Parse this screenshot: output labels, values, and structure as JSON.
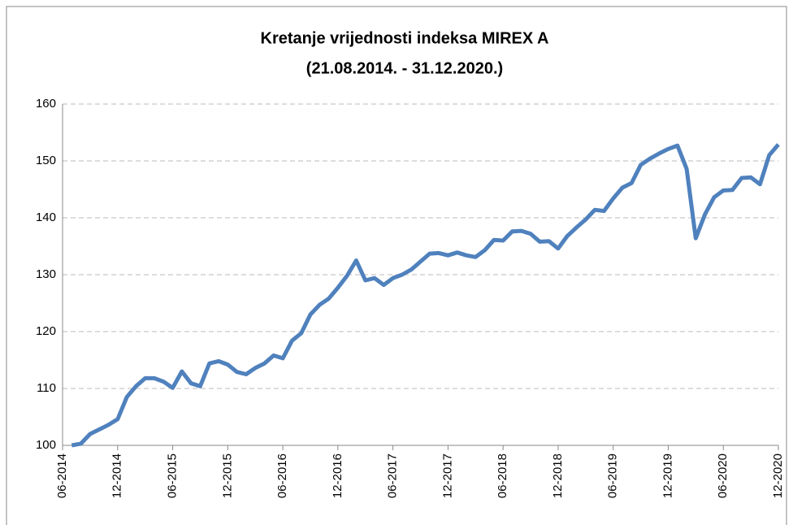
{
  "chart_data": {
    "type": "line",
    "title": "Kretanje vrijednosti indeksa MIREX A",
    "subtitle": "(21.08.2014. - 31.12.2020.)",
    "categories": [
      "06-2014",
      null,
      null,
      null,
      null,
      null,
      "12-2014",
      null,
      null,
      null,
      null,
      null,
      "06-2015",
      null,
      null,
      null,
      null,
      null,
      "12-2015",
      null,
      null,
      null,
      null,
      null,
      "06-2016",
      null,
      null,
      null,
      null,
      null,
      "12-2016",
      null,
      null,
      null,
      null,
      null,
      "06-2017",
      null,
      null,
      null,
      null,
      null,
      "12-2017",
      null,
      null,
      null,
      null,
      null,
      "06-2018",
      null,
      null,
      null,
      null,
      null,
      "12-2018",
      null,
      null,
      null,
      null,
      null,
      "06-2019",
      null,
      null,
      null,
      null,
      null,
      "12-2019",
      null,
      null,
      null,
      null,
      null,
      "06-2020",
      null,
      null,
      null,
      null,
      null,
      "12-2020"
    ],
    "series": [
      {
        "name": "MIREX A",
        "color": "#4f81bd",
        "values": [
          null,
          100,
          100.3,
          102,
          102.8,
          103.6,
          104.6,
          108.5,
          110.4,
          111.8,
          111.8,
          111.2,
          110.1,
          113,
          110.9,
          110.4,
          114.4,
          114.8,
          114.2,
          112.9,
          112.5,
          113.6,
          114.4,
          115.8,
          115.3,
          118.4,
          119.7,
          123,
          124.7,
          125.8,
          127.7,
          129.8,
          132.5,
          129,
          129.4,
          128.2,
          129.4,
          130,
          130.9,
          132.3,
          133.7,
          133.8,
          133.4,
          133.9,
          133.4,
          133.1,
          134.3,
          136.1,
          136,
          137.6,
          137.7,
          137.2,
          135.8,
          135.9,
          134.6,
          136.8,
          138.3,
          139.7,
          141.4,
          141.2,
          143.4,
          145.3,
          146.1,
          149.3,
          150.4,
          151.3,
          152.1,
          152.7,
          148.6,
          136.4,
          140.6,
          143.6,
          144.8,
          144.9,
          147,
          147.1,
          145.9,
          151,
          152.9
        ]
      }
    ],
    "ylim": [
      100,
      160
    ],
    "yticks": [
      100,
      110,
      120,
      130,
      140,
      150,
      160
    ],
    "grid": true
  }
}
